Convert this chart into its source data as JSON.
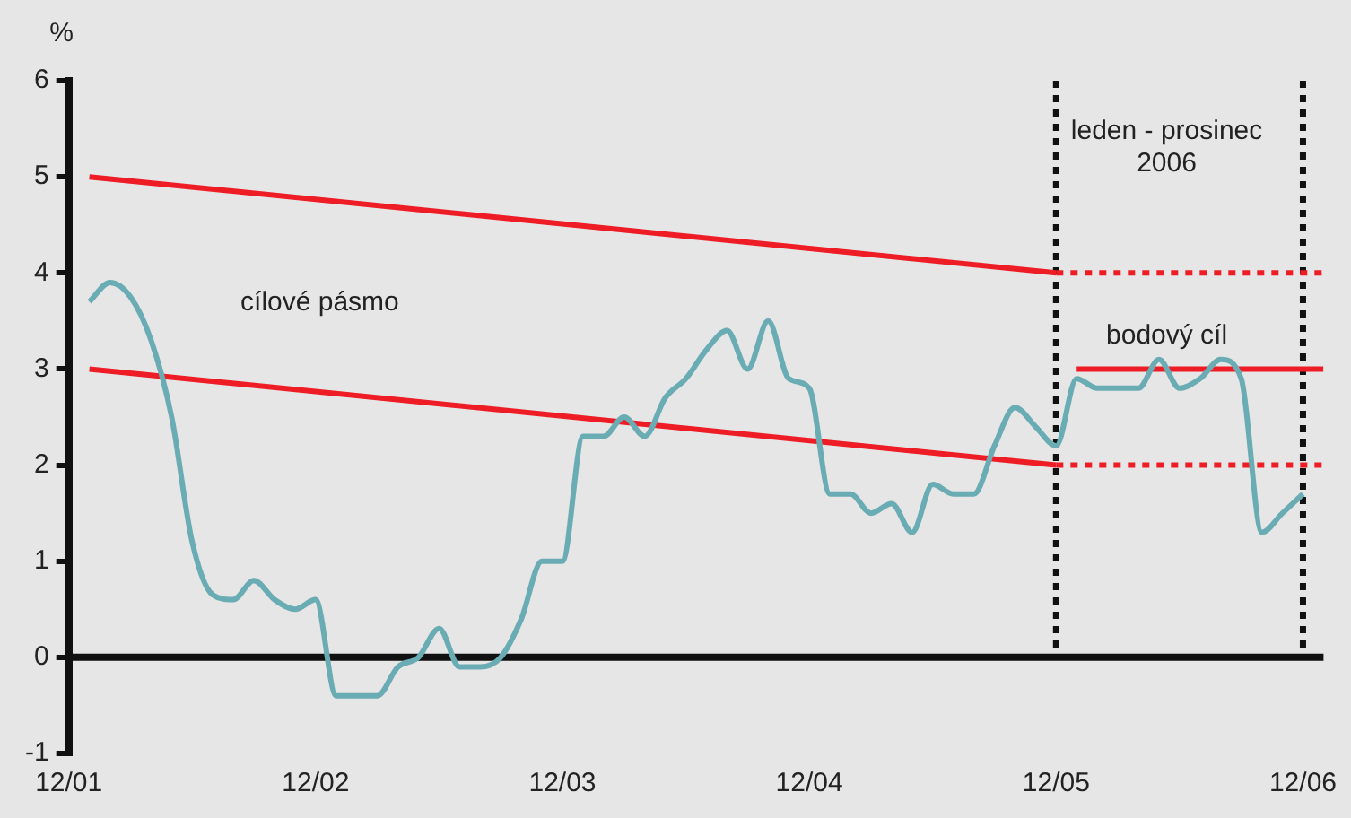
{
  "chart_data": {
    "type": "line",
    "ylabel": "%",
    "xlim": [
      "2001-12",
      "2007-01"
    ],
    "xticks": [
      {
        "value": "2001-12",
        "label": "12/01"
      },
      {
        "value": "2002-12",
        "label": "12/02"
      },
      {
        "value": "2003-12",
        "label": "12/03"
      },
      {
        "value": "2004-12",
        "label": "12/04"
      },
      {
        "value": "2005-12",
        "label": "12/05"
      },
      {
        "value": "2006-12",
        "label": "12/06"
      }
    ],
    "ylim": [
      -1,
      6
    ],
    "yticks": [
      -1,
      0,
      1,
      2,
      3,
      4,
      5,
      6
    ],
    "grid": false,
    "legend": false,
    "marker": "none",
    "x": [
      "2002-01",
      "2002-02",
      "2002-03",
      "2002-04",
      "2002-05",
      "2002-06",
      "2002-07",
      "2002-08",
      "2002-09",
      "2002-10",
      "2002-11",
      "2002-12",
      "2003-01",
      "2003-02",
      "2003-03",
      "2003-04",
      "2003-05",
      "2003-06",
      "2003-07",
      "2003-08",
      "2003-09",
      "2003-10",
      "2003-11",
      "2003-12",
      "2004-01",
      "2004-02",
      "2004-03",
      "2004-04",
      "2004-05",
      "2004-06",
      "2004-07",
      "2004-08",
      "2004-09",
      "2004-10",
      "2004-11",
      "2004-12",
      "2005-01",
      "2005-02",
      "2005-03",
      "2005-04",
      "2005-05",
      "2005-06",
      "2005-07",
      "2005-08",
      "2005-09",
      "2005-10",
      "2005-11",
      "2005-12",
      "2006-01",
      "2006-02",
      "2006-03",
      "2006-04",
      "2006-05",
      "2006-06",
      "2006-07",
      "2006-08",
      "2006-09",
      "2006-10",
      "2006-11",
      "2006-12"
    ],
    "series": [
      {
        "color": "#6aacb4",
        "line_style": "solid",
        "values": [
          3.7,
          3.9,
          3.75,
          3.3,
          2.5,
          1.2,
          0.65,
          0.6,
          0.8,
          0.6,
          0.5,
          0.6,
          -0.4,
          -0.4,
          -0.4,
          -0.1,
          0.0,
          0.3,
          -0.1,
          -0.1,
          0.0,
          0.4,
          1.0,
          1.0,
          2.3,
          2.3,
          2.5,
          2.3,
          2.7,
          2.9,
          3.2,
          3.4,
          3.0,
          3.5,
          2.9,
          2.8,
          1.7,
          1.7,
          1.5,
          1.6,
          1.3,
          1.8,
          1.7,
          1.7,
          2.2,
          2.6,
          2.4,
          2.2,
          2.9,
          2.8,
          2.8,
          2.8,
          3.1,
          2.8,
          2.9,
          3.1,
          2.9,
          1.3,
          1.5,
          1.7
        ]
      },
      {
        "color": "#ee1c25",
        "line_style": "solid",
        "x": [
          "2002-01",
          "2005-12"
        ],
        "values": [
          5,
          4
        ]
      },
      {
        "color": "#ee1c25",
        "line_style": "solid",
        "x": [
          "2002-01",
          "2005-12"
        ],
        "values": [
          3,
          2
        ]
      },
      {
        "color": "#ee1c25",
        "line_style": "dotted",
        "x": [
          "2005-12",
          "2007-01"
        ],
        "values": [
          4,
          4
        ]
      },
      {
        "color": "#ee1c25",
        "line_style": "dotted",
        "x": [
          "2005-12",
          "2007-01"
        ],
        "values": [
          2,
          2
        ]
      },
      {
        "color": "#ee1c25",
        "line_style": "solid",
        "x": [
          "2006-01",
          "2007-01"
        ],
        "values": [
          3,
          3
        ]
      }
    ],
    "ref_lines": [
      {
        "axis": "y",
        "value": 0,
        "color": "#111111",
        "line_style": "solid"
      },
      {
        "axis": "x",
        "value": "2005-12",
        "color": "#111111",
        "line_style": "dotted"
      },
      {
        "axis": "x",
        "value": "2006-12",
        "color": "#111111",
        "line_style": "dotted"
      }
    ],
    "annotations": [
      "cílové pásmo",
      "leden - prosinec 2006",
      "bodový cíl"
    ]
  }
}
